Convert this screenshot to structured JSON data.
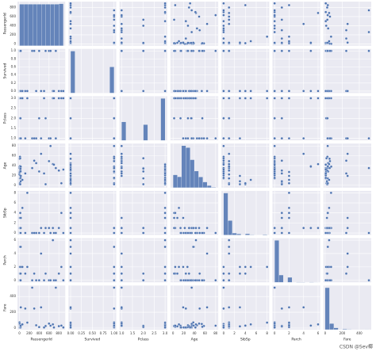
{
  "chart_data": {
    "type": "pairplot",
    "color": "#4c72b0",
    "grid": true,
    "variables": [
      {
        "name": "PassengerId",
        "lim": [
          -40,
          930
        ],
        "xticks": [
          0,
          200,
          400,
          600,
          800
        ],
        "yticks": [
          0,
          200,
          400,
          600,
          800
        ],
        "bins": [
          1,
          90,
          179,
          268,
          357,
          446,
          535,
          624,
          713,
          802,
          891
        ],
        "counts": [
          89,
          89,
          89,
          89,
          89,
          89,
          89,
          89,
          89,
          90
        ]
      },
      {
        "name": "Survived",
        "lim": [
          -0.05,
          1.05
        ],
        "xticks": [
          {
            "value": 0,
            "label": "0.00"
          },
          {
            "value": 0.25,
            "label": "0.25"
          },
          {
            "value": 0.5,
            "label": "0.50"
          },
          {
            "value": 0.75,
            "label": "0.75"
          },
          {
            "value": 1,
            "label": "1.00"
          }
        ],
        "yticks": [
          {
            "value": 0,
            "label": "0.0"
          },
          {
            "value": 0.2,
            "label": "0.2"
          },
          {
            "value": 0.4,
            "label": "0.4"
          },
          {
            "value": 0.6,
            "label": "0.6"
          },
          {
            "value": 0.8,
            "label": "0.8"
          },
          {
            "value": 1,
            "label": "1.0"
          }
        ],
        "bins": [
          0,
          0.1,
          0.2,
          0.3,
          0.4,
          0.5,
          0.6,
          0.7,
          0.8,
          0.9,
          1.0
        ],
        "counts": [
          549,
          0,
          0,
          0,
          0,
          0,
          0,
          0,
          0,
          342
        ]
      },
      {
        "name": "Pclass",
        "lim": [
          0.9,
          3.1
        ],
        "xticks": [
          {
            "value": 1,
            "label": "1.0"
          },
          1.5,
          {
            "value": 2,
            "label": "2.0"
          },
          2.5,
          {
            "value": 3,
            "label": "3.0"
          }
        ],
        "yticks": [
          {
            "value": 1,
            "label": "1.0"
          },
          1.5,
          {
            "value": 2,
            "label": "2.0"
          },
          2.5,
          {
            "value": 3,
            "label": "3.0"
          }
        ],
        "bins": [
          1,
          1.2,
          1.4,
          1.6,
          1.8,
          2.0,
          2.2,
          2.4,
          2.6,
          2.8,
          3.0
        ],
        "counts": [
          216,
          0,
          0,
          0,
          0,
          184,
          0,
          0,
          0,
          491
        ]
      },
      {
        "name": "Age",
        "lim": [
          -5,
          85
        ],
        "xticks": [
          0,
          20,
          40,
          60,
          80
        ],
        "yticks": [
          0,
          20,
          40,
          60,
          80
        ],
        "bins": [
          0,
          8,
          16,
          24,
          32,
          40,
          48,
          56,
          64,
          72,
          80
        ],
        "counts": [
          54,
          46,
          177,
          169,
          118,
          70,
          45,
          24,
          9,
          2
        ]
      },
      {
        "name": "SibSp",
        "lim": [
          -0.4,
          8.4
        ],
        "xticks": [
          0,
          2,
          4,
          6,
          8
        ],
        "yticks": [
          0,
          2,
          4,
          6,
          8
        ],
        "bins": [
          0,
          0.8,
          1.6,
          2.4,
          3.2,
          4.0,
          4.8,
          5.6,
          6.4,
          7.2,
          8.0
        ],
        "counts": [
          608,
          209,
          28,
          16,
          0,
          18,
          5,
          0,
          0,
          7
        ]
      },
      {
        "name": "Parch",
        "lim": [
          -0.3,
          6.3
        ],
        "xticks": [
          0,
          2,
          4,
          6
        ],
        "yticks": [
          0,
          2,
          4,
          6
        ],
        "bins": [
          0,
          0.6,
          1.2,
          1.8,
          2.4,
          3.0,
          3.6,
          4.2,
          4.8,
          5.4,
          6.0
        ],
        "counts": [
          678,
          118,
          0,
          80,
          0,
          5,
          4,
          0,
          5,
          1
        ]
      },
      {
        "name": "Fare",
        "lim": [
          -20,
          540
        ],
        "xticks": [
          0,
          200,
          400
        ],
        "yticks": [
          0,
          200,
          400
        ],
        "bins": [
          0,
          51.2,
          102.5,
          153.7,
          204.9,
          256.2,
          307.4,
          358.6,
          409.9,
          461.1,
          512.3
        ],
        "counts": [
          732,
          106,
          31,
          2,
          11,
          6,
          0,
          0,
          0,
          3
        ]
      }
    ],
    "rows": [
      [
        1,
        0,
        3,
        22,
        1,
        0,
        7.25
      ],
      [
        2,
        1,
        1,
        38,
        1,
        0,
        71.28
      ],
      [
        3,
        1,
        3,
        26,
        0,
        0,
        7.93
      ],
      [
        4,
        1,
        1,
        35,
        1,
        0,
        53.1
      ],
      [
        5,
        0,
        3,
        35,
        0,
        0,
        8.05
      ],
      [
        7,
        0,
        1,
        54,
        0,
        0,
        51.86
      ],
      [
        8,
        0,
        3,
        2,
        3,
        1,
        21.08
      ],
      [
        9,
        1,
        3,
        27,
        0,
        2,
        11.13
      ],
      [
        10,
        1,
        2,
        14,
        1,
        0,
        30.07
      ],
      [
        11,
        1,
        3,
        4,
        1,
        1,
        16.7
      ],
      [
        12,
        1,
        1,
        58,
        0,
        0,
        26.55
      ],
      [
        13,
        0,
        3,
        20,
        0,
        0,
        8.05
      ],
      [
        14,
        0,
        3,
        39,
        1,
        5,
        31.28
      ],
      [
        15,
        0,
        3,
        14,
        0,
        0,
        7.85
      ],
      [
        16,
        1,
        2,
        55,
        0,
        0,
        16
      ],
      [
        17,
        0,
        3,
        2,
        4,
        1,
        29.13
      ],
      [
        19,
        0,
        3,
        31,
        1,
        0,
        18
      ],
      [
        21,
        0,
        2,
        35,
        0,
        0,
        26
      ],
      [
        22,
        1,
        2,
        34,
        0,
        0,
        13
      ],
      [
        23,
        1,
        3,
        15,
        0,
        0,
        8.03
      ],
      [
        24,
        1,
        1,
        28,
        0,
        0,
        35.5
      ],
      [
        25,
        0,
        3,
        8,
        3,
        1,
        21.08
      ],
      [
        26,
        1,
        3,
        38,
        1,
        5,
        31.39
      ],
      [
        28,
        0,
        1,
        19,
        3,
        2,
        263
      ],
      [
        60,
        0,
        3,
        11,
        5,
        2,
        46.9
      ],
      [
        119,
        0,
        1,
        24,
        0,
        1,
        247.52
      ],
      [
        160,
        0,
        3,
        null,
        8,
        2,
        69.55
      ],
      [
        259,
        1,
        1,
        35,
        0,
        0,
        512.33
      ],
      [
        300,
        1,
        1,
        50,
        0,
        1,
        247.52
      ],
      [
        340,
        0,
        1,
        45,
        0,
        0,
        35.5
      ],
      [
        400,
        1,
        2,
        28,
        0,
        0,
        12.65
      ],
      [
        439,
        0,
        1,
        64,
        1,
        4,
        263
      ],
      [
        500,
        0,
        3,
        24,
        0,
        0,
        7.8
      ],
      [
        531,
        1,
        2,
        2,
        1,
        1,
        26
      ],
      [
        600,
        1,
        1,
        49,
        1,
        0,
        56.93
      ],
      [
        631,
        1,
        1,
        80,
        0,
        0,
        30
      ],
      [
        679,
        0,
        3,
        43,
        1,
        6,
        46.9
      ],
      [
        700,
        0,
        3,
        42,
        0,
        0,
        7.65
      ],
      [
        738,
        1,
        1,
        35,
        0,
        0,
        512.33
      ],
      [
        800,
        0,
        3,
        30,
        1,
        1,
        24.15
      ],
      [
        851,
        0,
        3,
        4,
        4,
        2,
        31.28
      ],
      [
        891,
        0,
        3,
        32,
        0,
        0,
        7.75
      ]
    ],
    "watermark": "CSDN @Sev椰"
  }
}
